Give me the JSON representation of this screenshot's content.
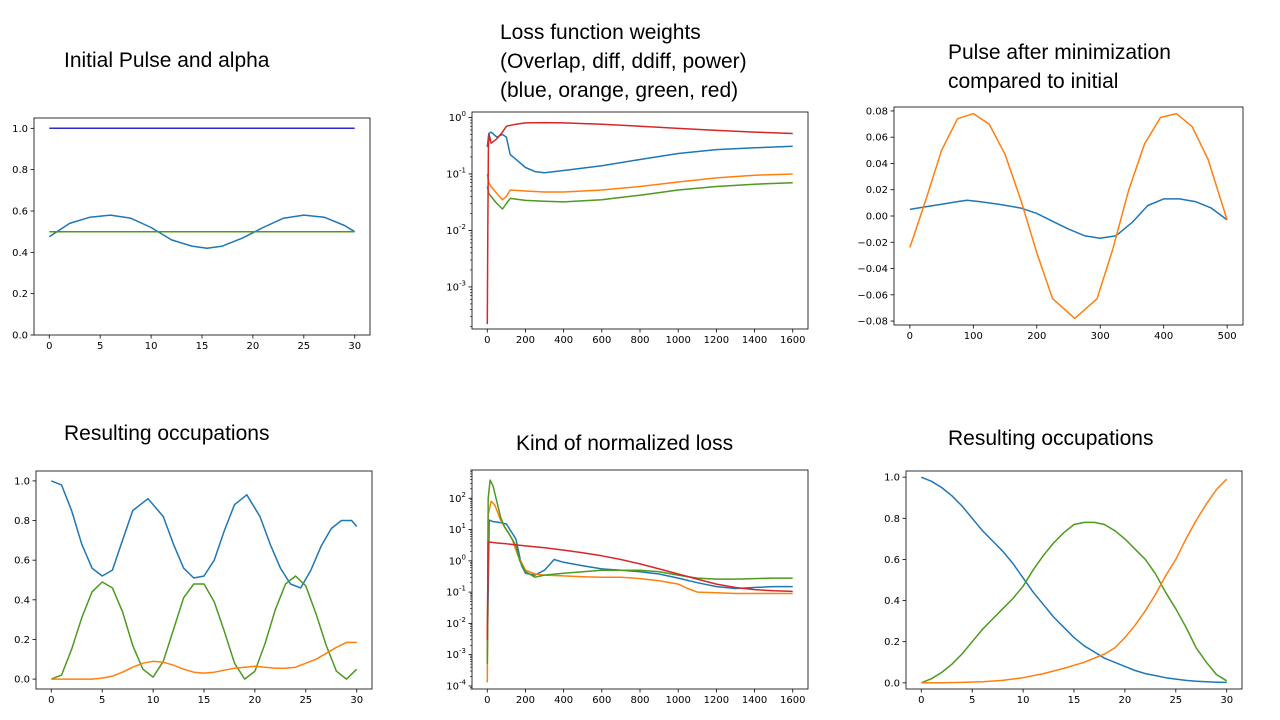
{
  "chart_data": [
    {
      "id": "p1",
      "type": "line",
      "title": [
        "Initial Pulse and alpha"
      ],
      "xlim": [
        -1.5,
        31.5
      ],
      "ylim": [
        0,
        1.05
      ],
      "yscale": "linear",
      "xticks": [
        0,
        5,
        10,
        15,
        20,
        25,
        30
      ],
      "yticks": [
        0,
        0.2,
        0.4,
        0.6,
        0.8,
        1.0
      ],
      "yticklabels": [
        "0.0",
        "0.2",
        "0.4",
        "0.6",
        "0.8",
        "1.0"
      ],
      "series": [
        {
          "color": "#1f77b4",
          "x": [
            0,
            2,
            4,
            6,
            8,
            10,
            12,
            14,
            15.5,
            17,
            19,
            21,
            23,
            25,
            27,
            29,
            30
          ],
          "values": [
            0.475,
            0.54,
            0.57,
            0.58,
            0.565,
            0.52,
            0.46,
            0.43,
            0.42,
            0.43,
            0.47,
            0.52,
            0.565,
            0.58,
            0.57,
            0.53,
            0.5
          ]
        },
        {
          "color": "#2b2bd1",
          "x": [
            0,
            30
          ],
          "values": [
            1.0,
            1.0
          ]
        },
        {
          "color": "#4c9a1f",
          "x": [
            0,
            30
          ],
          "values": [
            0.5,
            0.5
          ]
        }
      ]
    },
    {
      "id": "p2",
      "type": "line",
      "title": [
        "Loss function weights",
        "(Overlap, diff, ddiff, power)",
        "(blue, orange, green, red)"
      ],
      "xlim": [
        -80,
        1680
      ],
      "ylim": [
        0.00018,
        1.25
      ],
      "yscale": "log",
      "xticks": [
        0,
        200,
        400,
        600,
        800,
        1000,
        1200,
        1400,
        1600
      ],
      "yticks": [
        0.001,
        0.01,
        0.1,
        1
      ],
      "yticklabels": [
        "10^-3",
        "10^-2",
        "10^-1",
        "10^0"
      ],
      "series": [
        {
          "color": "#1f77b4",
          "x": [
            0,
            8,
            20,
            50,
            80,
            100,
            120,
            160,
            200,
            250,
            300,
            400,
            600,
            800,
            1000,
            1200,
            1400,
            1600
          ],
          "values": [
            0.3,
            0.52,
            0.55,
            0.45,
            0.5,
            0.45,
            0.22,
            0.17,
            0.13,
            0.11,
            0.105,
            0.115,
            0.14,
            0.18,
            0.23,
            0.27,
            0.29,
            0.31
          ]
        },
        {
          "color": "#ff7f0e",
          "x": [
            0,
            8,
            20,
            50,
            80,
            100,
            120,
            200,
            300,
            400,
            600,
            800,
            1000,
            1200,
            1400,
            1600
          ],
          "values": [
            0.1,
            0.07,
            0.06,
            0.045,
            0.035,
            0.04,
            0.052,
            0.05,
            0.048,
            0.048,
            0.052,
            0.06,
            0.072,
            0.085,
            0.095,
            0.1
          ]
        },
        {
          "color": "#4c9a1f",
          "x": [
            0,
            8,
            20,
            50,
            80,
            100,
            120,
            200,
            300,
            400,
            600,
            800,
            1000,
            1200,
            1400,
            1600
          ],
          "values": [
            0.06,
            0.045,
            0.04,
            0.03,
            0.024,
            0.03,
            0.037,
            0.034,
            0.033,
            0.032,
            0.035,
            0.042,
            0.052,
            0.06,
            0.066,
            0.07
          ]
        },
        {
          "color": "#d62728",
          "x": [
            0,
            3,
            6,
            10,
            20,
            50,
            80,
            100,
            150,
            200,
            300,
            400,
            600,
            800,
            1000,
            1200,
            1400,
            1600
          ],
          "values": [
            0.00022,
            0.01,
            0.3,
            0.5,
            0.35,
            0.42,
            0.55,
            0.7,
            0.76,
            0.8,
            0.81,
            0.8,
            0.76,
            0.7,
            0.64,
            0.59,
            0.55,
            0.52
          ]
        }
      ]
    },
    {
      "id": "p3",
      "type": "line",
      "title": [
        "Pulse after minimization",
        "compared to initial"
      ],
      "xlim": [
        -25,
        525
      ],
      "ylim": [
        -0.083,
        0.083
      ],
      "yscale": "linear",
      "xticks": [
        0,
        100,
        200,
        300,
        400,
        500
      ],
      "yticks": [
        -0.08,
        -0.06,
        -0.04,
        -0.02,
        0.0,
        0.02,
        0.04,
        0.06,
        0.08
      ],
      "yticklabels": [
        "−0.08",
        "−0.06",
        "−0.04",
        "−0.02",
        "0.00",
        "0.02",
        "0.04",
        "0.06",
        "0.08"
      ],
      "series": [
        {
          "color": "#1f77b4",
          "x": [
            0,
            25,
            50,
            75,
            90,
            110,
            140,
            175,
            200,
            225,
            250,
            275,
            300,
            325,
            350,
            375,
            400,
            425,
            450,
            475,
            500
          ],
          "values": [
            0.005,
            0.007,
            0.009,
            0.011,
            0.012,
            0.011,
            0.009,
            0.006,
            0.002,
            -0.004,
            -0.01,
            -0.015,
            -0.017,
            -0.015,
            -0.005,
            0.008,
            0.013,
            0.013,
            0.011,
            0.006,
            -0.003
          ]
        },
        {
          "color": "#ff7f0e",
          "x": [
            0,
            25,
            50,
            75,
            100,
            125,
            150,
            175,
            200,
            225,
            260,
            295,
            320,
            345,
            370,
            395,
            420,
            445,
            470,
            500
          ],
          "values": [
            -0.024,
            0.012,
            0.05,
            0.074,
            0.078,
            0.07,
            0.047,
            0.012,
            -0.028,
            -0.063,
            -0.078,
            -0.063,
            -0.025,
            0.02,
            0.055,
            0.075,
            0.078,
            0.068,
            0.043,
            -0.003
          ]
        }
      ]
    },
    {
      "id": "p4",
      "type": "line",
      "title": [
        "Resulting occupations"
      ],
      "xlim": [
        -1.5,
        31.5
      ],
      "ylim": [
        -0.05,
        1.05
      ],
      "yscale": "linear",
      "xticks": [
        0,
        5,
        10,
        15,
        20,
        25,
        30
      ],
      "yticks": [
        0,
        0.2,
        0.4,
        0.6,
        0.8,
        1.0
      ],
      "yticklabels": [
        "0.0",
        "0.2",
        "0.4",
        "0.6",
        "0.8",
        "1.0"
      ],
      "series": [
        {
          "color": "#1f77b4",
          "x": [
            0,
            1,
            2,
            3,
            4,
            5,
            6,
            7,
            8,
            9.5,
            11,
            12,
            13,
            14,
            15,
            16,
            17,
            18,
            19.2,
            20.5,
            21.5,
            22.5,
            23.5,
            24.5,
            25.5,
            26.5,
            27.5,
            28.5,
            29.5,
            30
          ],
          "values": [
            1.0,
            0.98,
            0.85,
            0.68,
            0.56,
            0.52,
            0.55,
            0.7,
            0.85,
            0.91,
            0.82,
            0.68,
            0.56,
            0.51,
            0.52,
            0.6,
            0.75,
            0.88,
            0.93,
            0.82,
            0.68,
            0.56,
            0.48,
            0.46,
            0.55,
            0.67,
            0.76,
            0.8,
            0.8,
            0.77
          ]
        },
        {
          "color": "#4c9a1f",
          "x": [
            0,
            1,
            2,
            3,
            4,
            5,
            6,
            7,
            8,
            9,
            10,
            11,
            12,
            13,
            14,
            15,
            16,
            17,
            18,
            19,
            20,
            21,
            22,
            23,
            24,
            25,
            26,
            27,
            28,
            29,
            30
          ],
          "values": [
            0.0,
            0.02,
            0.15,
            0.31,
            0.44,
            0.49,
            0.46,
            0.34,
            0.17,
            0.05,
            0.01,
            0.09,
            0.25,
            0.41,
            0.48,
            0.48,
            0.39,
            0.24,
            0.08,
            0.0,
            0.04,
            0.18,
            0.35,
            0.48,
            0.52,
            0.47,
            0.33,
            0.17,
            0.04,
            0.0,
            0.05
          ]
        },
        {
          "color": "#ff7f0e",
          "x": [
            0,
            2,
            4,
            5,
            6,
            7,
            8,
            9,
            10,
            11,
            12,
            13,
            14,
            15,
            16,
            17,
            18,
            19,
            20,
            21,
            22,
            23,
            24,
            25,
            26,
            27,
            28,
            29,
            30
          ],
          "values": [
            0.0,
            0.0,
            0.0,
            0.005,
            0.015,
            0.035,
            0.06,
            0.08,
            0.09,
            0.085,
            0.07,
            0.05,
            0.035,
            0.03,
            0.035,
            0.045,
            0.055,
            0.06,
            0.065,
            0.06,
            0.055,
            0.055,
            0.06,
            0.08,
            0.1,
            0.13,
            0.16,
            0.185,
            0.185
          ]
        }
      ]
    },
    {
      "id": "p5",
      "type": "line",
      "title": [
        "Kind of normalized loss"
      ],
      "xlim": [
        -80,
        1680
      ],
      "ylim": [
        8e-05,
        800
      ],
      "yscale": "log",
      "xticks": [
        0,
        200,
        400,
        600,
        800,
        1000,
        1200,
        1400,
        1600
      ],
      "yticks": [
        0.0001,
        0.001,
        0.01,
        0.1,
        1,
        10,
        100
      ],
      "yticklabels": [
        "10^-4",
        "10^-3",
        "10^-2",
        "10^-1",
        "10^0",
        "10^1",
        "10^2"
      ],
      "series": [
        {
          "color": "#1f77b4",
          "x": [
            0,
            10,
            30,
            60,
            100,
            150,
            180,
            200,
            250,
            300,
            350,
            400,
            500,
            600,
            700,
            800,
            900,
            1000,
            1100,
            1200,
            1300,
            1400,
            1500,
            1600
          ],
          "values": [
            0.0008,
            20,
            18,
            17,
            15,
            5,
            0.7,
            0.4,
            0.35,
            0.5,
            1.1,
            0.9,
            0.7,
            0.55,
            0.5,
            0.45,
            0.38,
            0.28,
            0.2,
            0.15,
            0.13,
            0.14,
            0.15,
            0.15
          ]
        },
        {
          "color": "#ff7f0e",
          "x": [
            0,
            5,
            20,
            40,
            70,
            100,
            130,
            160,
            200,
            250,
            300,
            400,
            500,
            600,
            700,
            800,
            900,
            1000,
            1050,
            1100,
            1200,
            1300,
            1400,
            1500,
            1600
          ],
          "values": [
            0.00013,
            30,
            80,
            60,
            20,
            10,
            5,
            1.5,
            0.5,
            0.38,
            0.35,
            0.33,
            0.31,
            0.3,
            0.3,
            0.27,
            0.23,
            0.18,
            0.13,
            0.1,
            0.095,
            0.09,
            0.09,
            0.09,
            0.09
          ]
        },
        {
          "color": "#4c9a1f",
          "x": [
            0,
            5,
            15,
            30,
            50,
            70,
            90,
            110,
            130,
            150,
            170,
            200,
            250,
            300,
            400,
            500,
            600,
            700,
            800,
            900,
            1000,
            1100,
            1200,
            1300,
            1400,
            1500,
            1600
          ],
          "values": [
            0.0005,
            100,
            380,
            250,
            80,
            25,
            12,
            8,
            5,
            3,
            1,
            0.45,
            0.3,
            0.35,
            0.4,
            0.45,
            0.5,
            0.5,
            0.5,
            0.45,
            0.35,
            0.28,
            0.26,
            0.26,
            0.27,
            0.28,
            0.28
          ]
        },
        {
          "color": "#d62728",
          "x": [
            0,
            5,
            20,
            50,
            100,
            200,
            300,
            400,
            500,
            600,
            700,
            800,
            900,
            1000,
            1100,
            1200,
            1300,
            1400,
            1500,
            1600
          ],
          "values": [
            0.003,
            4,
            3.9,
            3.7,
            3.5,
            3.0,
            2.6,
            2.2,
            1.8,
            1.45,
            1.1,
            0.8,
            0.55,
            0.38,
            0.26,
            0.18,
            0.14,
            0.12,
            0.11,
            0.105
          ]
        }
      ]
    },
    {
      "id": "p6",
      "type": "line",
      "title": [
        "Resulting occupations"
      ],
      "xlim": [
        -1.5,
        31.5
      ],
      "ylim": [
        -0.03,
        1.03
      ],
      "yscale": "linear",
      "xticks": [
        0,
        5,
        10,
        15,
        20,
        25,
        30
      ],
      "yticks": [
        0,
        0.2,
        0.4,
        0.6,
        0.8,
        1.0
      ],
      "yticklabels": [
        "0.0",
        "0.2",
        "0.4",
        "0.6",
        "0.8",
        "1.0"
      ],
      "series": [
        {
          "color": "#1f77b4",
          "x": [
            0,
            1,
            2,
            3,
            4,
            5,
            6,
            7,
            8,
            9,
            10,
            11,
            12,
            13,
            14,
            15,
            16,
            17,
            18,
            19,
            20,
            21,
            22,
            23,
            24,
            25,
            26,
            27,
            28,
            29,
            30
          ],
          "values": [
            1.0,
            0.98,
            0.95,
            0.91,
            0.86,
            0.8,
            0.74,
            0.69,
            0.64,
            0.58,
            0.51,
            0.44,
            0.38,
            0.32,
            0.27,
            0.22,
            0.18,
            0.15,
            0.12,
            0.1,
            0.08,
            0.06,
            0.045,
            0.035,
            0.025,
            0.018,
            0.012,
            0.008,
            0.005,
            0.003,
            0.002
          ]
        },
        {
          "color": "#4c9a1f",
          "x": [
            0,
            1,
            2,
            3,
            4,
            5,
            6,
            7,
            8,
            9,
            10,
            11,
            12,
            13,
            14,
            15,
            16,
            17,
            18,
            19,
            20,
            21,
            22,
            23,
            24,
            25,
            26,
            27,
            28,
            29,
            30
          ],
          "values": [
            0.0,
            0.02,
            0.05,
            0.09,
            0.14,
            0.2,
            0.26,
            0.31,
            0.36,
            0.41,
            0.47,
            0.55,
            0.62,
            0.68,
            0.73,
            0.77,
            0.78,
            0.78,
            0.77,
            0.74,
            0.7,
            0.65,
            0.6,
            0.53,
            0.44,
            0.36,
            0.27,
            0.17,
            0.1,
            0.04,
            0.01
          ]
        },
        {
          "color": "#ff7f0e",
          "x": [
            0,
            2,
            4,
            6,
            8,
            10,
            12,
            14,
            16,
            18,
            19,
            20,
            21,
            22,
            23,
            24,
            25,
            26,
            27,
            28,
            29,
            30
          ],
          "values": [
            0.0,
            0.0,
            0.002,
            0.005,
            0.012,
            0.025,
            0.045,
            0.07,
            0.1,
            0.14,
            0.17,
            0.22,
            0.28,
            0.35,
            0.43,
            0.52,
            0.6,
            0.7,
            0.79,
            0.87,
            0.94,
            0.99
          ]
        }
      ]
    }
  ]
}
